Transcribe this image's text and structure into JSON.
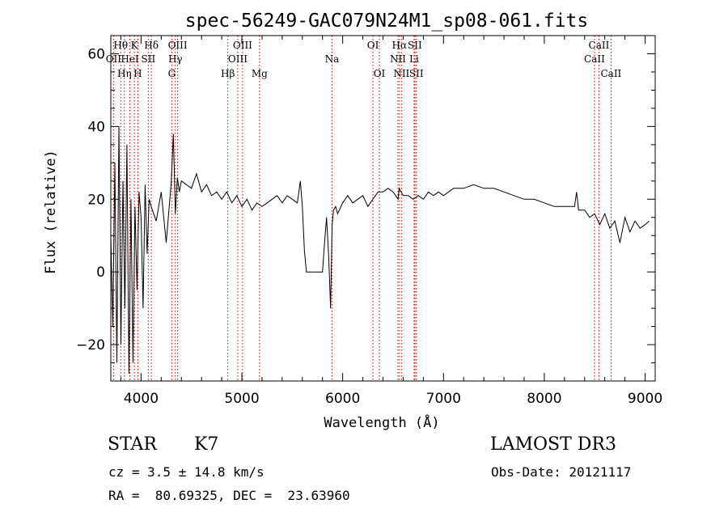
{
  "chart_data": {
    "type": "line",
    "title": "spec-56249-GAC079N24M1_sp08-061.fits",
    "xlabel": "Wavelength (Å)",
    "ylabel": "Flux (relative)",
    "xlim": [
      3700,
      9100
    ],
    "ylim": [
      -30,
      65
    ],
    "x_ticks": [
      4000,
      5000,
      6000,
      7000,
      8000,
      9000
    ],
    "y_ticks": [
      -20,
      0,
      20,
      40,
      60
    ],
    "line_color": "#000000",
    "marker_color": "#c00000",
    "series": [
      {
        "x": [
          3700,
          3720,
          3740,
          3760,
          3780,
          3800,
          3820,
          3840,
          3860,
          3880,
          3900,
          3920,
          3940,
          3960,
          3980,
          4000,
          4020,
          4040,
          4060,
          4080,
          4100,
          4150,
          4200,
          4250,
          4300,
          4320,
          4340,
          4360,
          4380,
          4400,
          4450,
          4500,
          4550,
          4600,
          4650,
          4700,
          4750,
          4800,
          4850,
          4900,
          4950,
          5000,
          5050,
          5100,
          5150,
          5200,
          5250,
          5300,
          5350,
          5400,
          5450,
          5500,
          5550,
          5580,
          5600,
          5620,
          5640,
          5660,
          5680,
          5700,
          5750,
          5800,
          5820,
          5840,
          5860,
          5880,
          5895,
          5910,
          5930,
          5950,
          6000,
          6050,
          6100,
          6150,
          6200,
          6250,
          6300,
          6350,
          6400,
          6450,
          6500,
          6550,
          6560,
          6600,
          6650,
          6700,
          6750,
          6800,
          6850,
          6900,
          6950,
          7000,
          7100,
          7200,
          7300,
          7400,
          7500,
          7600,
          7700,
          7800,
          7900,
          8000,
          8100,
          8200,
          8300,
          8320,
          8340,
          8400,
          8450,
          8500,
          8550,
          8600,
          8650,
          8700,
          8750,
          8800,
          8850,
          8900,
          8950,
          9000,
          9040
        ],
        "y": [
          10,
          -15,
          30,
          -25,
          40,
          -20,
          25,
          -10,
          35,
          -28,
          20,
          -25,
          18,
          -5,
          22,
          15,
          -10,
          24,
          5,
          20,
          18,
          14,
          22,
          8,
          25,
          38,
          16,
          26,
          22,
          25,
          24,
          23,
          27,
          22,
          24,
          21,
          22,
          20,
          22,
          19,
          21,
          18,
          20,
          17,
          19,
          18,
          19,
          20,
          21,
          19,
          21,
          20,
          19,
          25,
          18,
          6,
          0,
          0,
          0,
          0,
          0,
          0,
          8,
          15,
          5,
          -10,
          13,
          17,
          18,
          16,
          19,
          21,
          19,
          20,
          21,
          18,
          20,
          22,
          22,
          23,
          22,
          20,
          23,
          21,
          21,
          20,
          21,
          20,
          22,
          21,
          22,
          21,
          23,
          23,
          24,
          23,
          23,
          22,
          21,
          20,
          20,
          19,
          18,
          18,
          18,
          22,
          17,
          17,
          15,
          16,
          13,
          16,
          12,
          14,
          8,
          15,
          11,
          14,
          12,
          13,
          14
        ]
      }
    ],
    "lines": [
      {
        "label": "OII",
        "x": 3727,
        "row": 2
      },
      {
        "label": "Hθ",
        "x": 3798,
        "row": 1
      },
      {
        "label": "Hη",
        "x": 3835,
        "row": 3
      },
      {
        "label": "HeI",
        "x": 3889,
        "row": 2
      },
      {
        "label": "K",
        "x": 3934,
        "row": 1
      },
      {
        "label": "H",
        "x": 3968,
        "row": 3
      },
      {
        "label": "SII",
        "x": 4072,
        "row": 2
      },
      {
        "label": "Hδ",
        "x": 4102,
        "row": 1
      },
      {
        "label": "G",
        "x": 4305,
        "row": 3
      },
      {
        "label": "Hγ",
        "x": 4340,
        "row": 2
      },
      {
        "label": "OIII",
        "x": 4363,
        "row": 1
      },
      {
        "label": "Hβ",
        "x": 4861,
        "row": 3
      },
      {
        "label": "OIII",
        "x": 4959,
        "row": 2
      },
      {
        "label": "OIII",
        "x": 5007,
        "row": 1
      },
      {
        "label": "Mg",
        "x": 5175,
        "row": 3
      },
      {
        "label": "Na",
        "x": 5894,
        "row": 2
      },
      {
        "label": "OI",
        "x": 6300,
        "row": 1
      },
      {
        "label": "OI",
        "x": 6364,
        "row": 3
      },
      {
        "label": "NII",
        "x": 6548,
        "row": 2
      },
      {
        "label": "Hα",
        "x": 6563,
        "row": 1
      },
      {
        "label": "NII",
        "x": 6583,
        "row": 3
      },
      {
        "label": "SII",
        "x": 6716,
        "row": 1
      },
      {
        "label": "Li",
        "x": 6708,
        "row": 2
      },
      {
        "label": "SII",
        "x": 6731,
        "row": 3
      },
      {
        "label": "CaII",
        "x": 8498,
        "row": 2
      },
      {
        "label": "CaII",
        "x": 8542,
        "row": 1
      },
      {
        "label": "CaII",
        "x": 8662,
        "row": 3
      }
    ]
  },
  "info": {
    "object_type": "STAR",
    "subclass": "K7",
    "survey": "LAMOST DR3",
    "cz": "cz = 3.5 ± 14.8 km/s",
    "obs_date": "Obs-Date: 20121117",
    "coords": "RA =  80.69325, DEC =  23.63960"
  }
}
